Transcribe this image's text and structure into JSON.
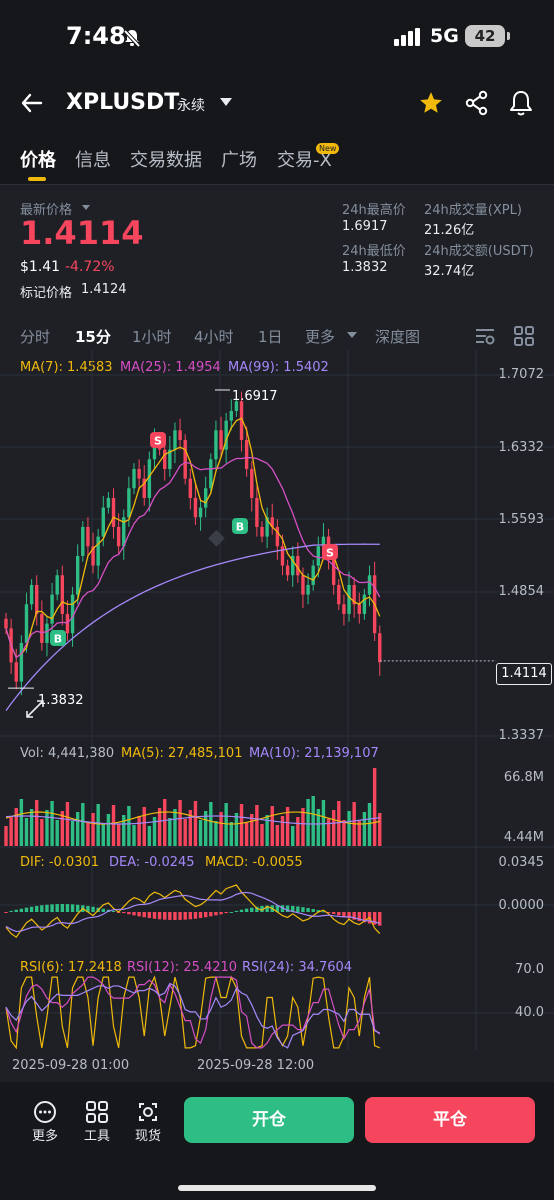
{
  "status": {
    "time": "7:48",
    "network": "5G",
    "battery": "42"
  },
  "header": {
    "symbol": "XPLUSDT",
    "contract": "永续"
  },
  "tabs": [
    "价格",
    "信息",
    "交易数据",
    "广场",
    "交易-X"
  ],
  "new_badge": "New",
  "price": {
    "latest_label": "最新价格",
    "last": "1.4114",
    "usd": "$1.41",
    "change": "-4.72%",
    "mark_label": "标记价格",
    "mark_value": "1.4124"
  },
  "stats": {
    "high_label": "24h最高价",
    "high": "1.6917",
    "low_label": "24h最低价",
    "low": "1.3832",
    "vol_label": "24h成交量(XPL)",
    "vol": "21.26亿",
    "amt_label": "24h成交额(USDT)",
    "amt": "32.74亿"
  },
  "intervals": [
    "分时",
    "15分",
    "1小时",
    "4小时",
    "1日",
    "更多",
    "深度图"
  ],
  "ma": {
    "ma7": "MA(7): 1.4583",
    "ma25": "MA(25): 1.4954",
    "ma99": "MA(99): 1.5402"
  },
  "price_axis": [
    "1.7072",
    "1.6332",
    "1.5593",
    "1.4854",
    "1.3337"
  ],
  "current_price_label": "1.4114",
  "high_marker": "1.6917",
  "low_marker": "1.3832",
  "trade_markers": [
    "S",
    "B",
    "B",
    "S"
  ],
  "volume": {
    "vol": "Vol: 4,441,380",
    "ma5": "MA(5): 27,485,101",
    "ma10": "MA(10): 21,139,107",
    "axis_top": "66.8M",
    "axis_bottom": "4.44M"
  },
  "macd": {
    "dif": "DIF: -0.0301",
    "dea": "DEA: -0.0245",
    "macd": "MACD: -0.0055",
    "axis_top": "0.0345",
    "axis_mid": "0.0000"
  },
  "rsi": {
    "rsi6": "RSI(6): 17.2418",
    "rsi12": "RSI(12): 25.4210",
    "rsi24": "RSI(24): 34.7604",
    "axis_top": "70.0",
    "axis_mid": "40.0"
  },
  "dates": [
    "2025-09-28 01:00",
    "2025-09-28 12:00"
  ],
  "bottom": {
    "more": "更多",
    "tools": "工具",
    "spot": "现货",
    "open": "开仓",
    "close": "平仓"
  },
  "colors": {
    "up": "#2ebd85",
    "down": "#f6465d",
    "accent": "#f0b90b",
    "ma7": "#f0b90b",
    "ma25": "#d64fc4",
    "ma99": "#a688fa"
  },
  "chart_data": {
    "type": "candlestick",
    "price_range": [
      1.3337,
      1.7072
    ],
    "close_series": [
      1.445,
      1.41,
      1.39,
      1.43,
      1.47,
      1.49,
      1.46,
      1.43,
      1.45,
      1.48,
      1.5,
      1.46,
      1.44,
      1.48,
      1.52,
      1.55,
      1.53,
      1.51,
      1.54,
      1.57,
      1.58,
      1.55,
      1.53,
      1.56,
      1.59,
      1.61,
      1.6,
      1.58,
      1.62,
      1.64,
      1.63,
      1.61,
      1.63,
      1.65,
      1.64,
      1.6,
      1.58,
      1.56,
      1.57,
      1.59,
      1.62,
      1.65,
      1.63,
      1.66,
      1.67,
      1.68,
      1.64,
      1.61,
      1.58,
      1.55,
      1.54,
      1.56,
      1.55,
      1.53,
      1.51,
      1.5,
      1.52,
      1.5,
      1.48,
      1.49,
      1.51,
      1.53,
      1.54,
      1.52,
      1.49,
      1.47,
      1.46,
      1.49,
      1.47,
      1.46,
      1.48,
      1.5,
      1.44,
      1.41
    ]
  }
}
